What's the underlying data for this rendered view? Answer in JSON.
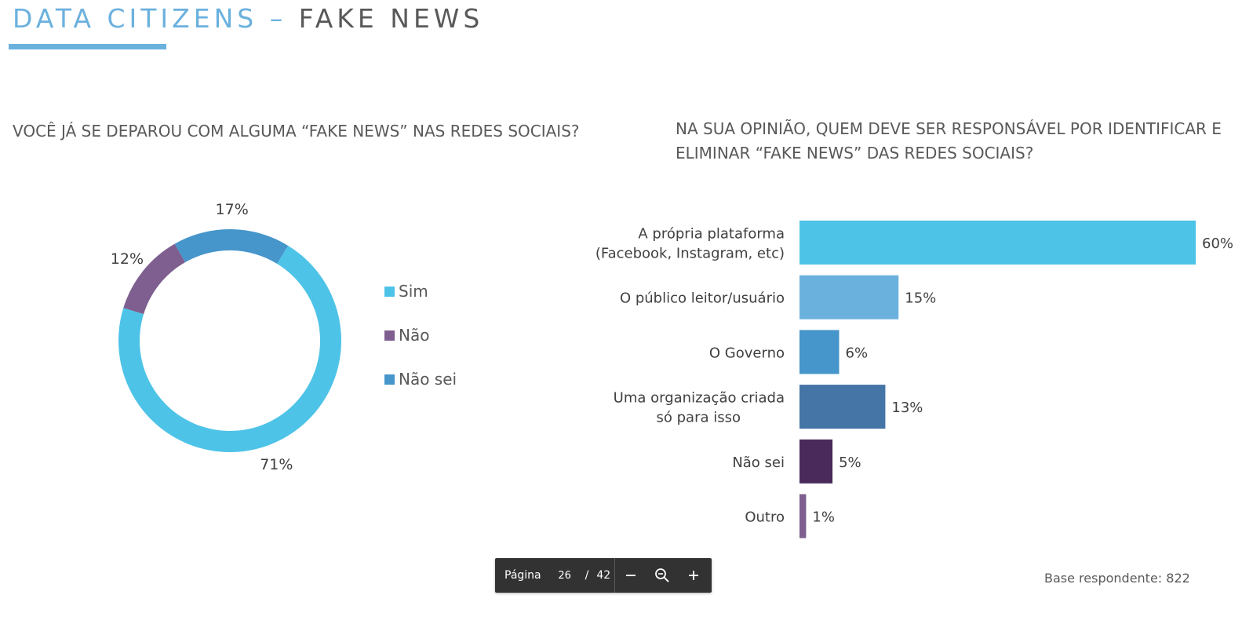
{
  "header": {
    "title_part1": "DATA CITIZENS –",
    "title_part2": "FAKE NEWS"
  },
  "colors": {
    "accent": "#6BB1DE",
    "sim": "#4EC3E8",
    "nao": "#7E5F8F",
    "nao_sei": "#4695CB",
    "bars": [
      "#4EC3E8",
      "#6BB1DE",
      "#4695CB",
      "#4475A6",
      "#4A2A5A",
      "#7E5F8F"
    ]
  },
  "left_question": "VOCÊ JÁ SE DEPAROU COM ALGUMA “FAKE NEWS” NAS REDES SOCIAIS?",
  "right_question": "NA SUA OPINIÃO, QUEM DEVE SER RESPONSÁVEL POR IDENTIFICAR E ELIMINAR “FAKE NEWS” DAS REDES SOCIAIS?",
  "chart_data": [
    {
      "type": "pie",
      "title": "VOCÊ JÁ SE DEPAROU COM ALGUMA “FAKE NEWS” NAS REDES SOCIAIS?",
      "categories": [
        "Sim",
        "Não",
        "Não sei"
      ],
      "values": [
        71,
        12,
        17
      ],
      "labels": [
        "71%",
        "12%",
        "17%"
      ],
      "donut": true,
      "legend": "right"
    },
    {
      "type": "bar",
      "orientation": "horizontal",
      "title": "NA SUA OPINIÃO, QUEM DEVE SER RESPONSÁVEL POR IDENTIFICAR E ELIMINAR “FAKE NEWS” DAS REDES SOCIAIS?",
      "categories": [
        [
          "A própria plataforma",
          "(Facebook, Instagram, etc)"
        ],
        [
          "O público leitor/usuário"
        ],
        [
          "O Governo"
        ],
        [
          "Uma organização criada",
          "só para isso"
        ],
        [
          "Não sei"
        ],
        [
          "Outro"
        ]
      ],
      "values": [
        60,
        15,
        6,
        13,
        5,
        1
      ],
      "labels": [
        "60%",
        "15%",
        "6%",
        "13%",
        "5%",
        "1%"
      ],
      "xlim": [
        0,
        60
      ],
      "grid": false
    }
  ],
  "toolbar": {
    "page_label": "Página",
    "page_value": "26",
    "separator": "/",
    "total_pages": "42",
    "zoom_out_icon": "minus-icon",
    "zoom_reset_icon": "magnifier-minus-icon",
    "zoom_in_icon": "plus-icon"
  },
  "footer": {
    "base_text": "Base respondente: 822"
  }
}
